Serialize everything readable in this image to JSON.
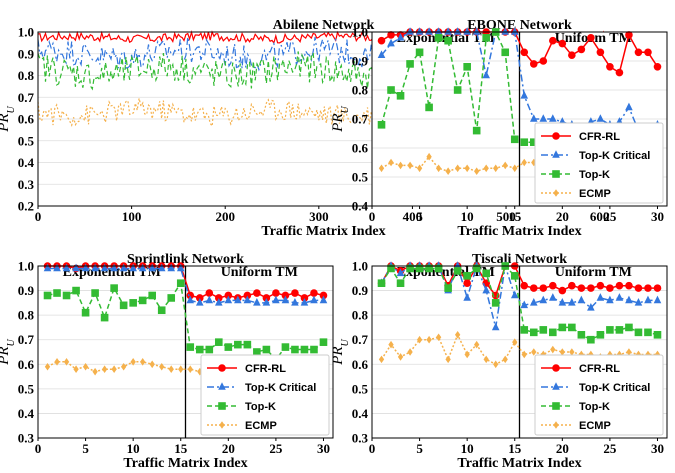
{
  "colors": {
    "cfr": "#ff0000",
    "topkc": "#3377dd",
    "topk": "#33bb33",
    "ecmp": "#f5b14c"
  },
  "chart_data": [
    {
      "type": "line",
      "title": "Abilene Network",
      "xlabel": "Traffic Matrix Index",
      "ylabel": "PR_U",
      "xlim": [
        0,
        610
      ],
      "ylim": [
        0.2,
        1.0
      ],
      "xticks": [
        "0",
        "100",
        "200",
        "300",
        "400",
        "500",
        "600"
      ],
      "yticks": [
        "0.2",
        "0.3",
        "0.4",
        "0.5",
        "0.6",
        "0.7",
        "0.8",
        "0.9",
        "1.0"
      ],
      "legend_position": "bottom-right",
      "series": [
        {
          "name": "CFR-RL",
          "mean": 0.975,
          "amp": 0.02
        },
        {
          "name": "Top-K Critical",
          "mean": 0.9,
          "amp": 0.06
        },
        {
          "name": "Top-K",
          "mean": 0.82,
          "amp": 0.07
        },
        {
          "name": "ECMP",
          "mean": 0.63,
          "amp": 0.05
        }
      ],
      "x_count": 610
    },
    {
      "type": "line",
      "title": "EBONE Network",
      "region_labels": [
        "Exponential TM",
        "Uniform TM"
      ],
      "split_x": 15.5,
      "xlabel": "Traffic Matrix Index",
      "ylabel": "PR_U",
      "xlim": [
        0,
        31
      ],
      "ylim": [
        0.4,
        1.0
      ],
      "xticks": [
        "0",
        "5",
        "10",
        "15",
        "20",
        "25",
        "30"
      ],
      "yticks": [
        "0.4",
        "0.5",
        "0.6",
        "0.7",
        "0.8",
        "0.9",
        "1.0"
      ],
      "legend_position": "bottom-right",
      "x": [
        1,
        2,
        3,
        4,
        5,
        6,
        7,
        8,
        9,
        10,
        11,
        12,
        13,
        14,
        15,
        16,
        17,
        18,
        19,
        20,
        21,
        22,
        23,
        24,
        25,
        26,
        27,
        28,
        29,
        30
      ],
      "series": [
        {
          "name": "CFR-RL",
          "values": [
            0.97,
            0.99,
            0.99,
            1.0,
            1.0,
            1.0,
            1.0,
            1.0,
            1.0,
            1.0,
            1.0,
            1.0,
            1.0,
            1.0,
            1.0,
            0.93,
            0.89,
            0.9,
            0.97,
            0.96,
            0.92,
            0.94,
            0.98,
            0.93,
            0.88,
            0.86,
            0.99,
            0.93,
            0.93,
            0.88
          ]
        },
        {
          "name": "Top-K Critical",
          "values": [
            0.92,
            0.96,
            0.98,
            1.0,
            1.0,
            1.0,
            1.0,
            1.0,
            1.0,
            1.0,
            1.0,
            0.85,
            1.0,
            1.0,
            1.0,
            0.78,
            0.7,
            0.7,
            0.7,
            0.69,
            0.68,
            0.67,
            0.69,
            0.7,
            0.68,
            0.69,
            0.74,
            0.66,
            0.67,
            0.68
          ]
        },
        {
          "name": "Top-K",
          "values": [
            0.68,
            0.8,
            0.78,
            0.89,
            0.93,
            0.74,
            0.98,
            0.97,
            0.8,
            0.88,
            0.66,
            0.98,
            1.0,
            0.93,
            0.63,
            0.62,
            0.62,
            0.63,
            0.61,
            0.62,
            0.6,
            0.6,
            0.6,
            0.61,
            0.59,
            0.63,
            0.6,
            0.61,
            0.62,
            0.6
          ]
        },
        {
          "name": "ECMP",
          "values": [
            0.53,
            0.55,
            0.54,
            0.54,
            0.53,
            0.57,
            0.53,
            0.52,
            0.53,
            0.53,
            0.52,
            0.53,
            0.53,
            0.54,
            0.53,
            0.55,
            0.55,
            0.54,
            0.55,
            0.54,
            0.55,
            0.55,
            0.54,
            0.54,
            0.55,
            0.55,
            0.55,
            0.54,
            0.55,
            0.54
          ]
        }
      ]
    },
    {
      "type": "line",
      "title": "Sprintlink Network",
      "region_labels": [
        "Exponential TM",
        "Uniform TM"
      ],
      "split_x": 15.5,
      "xlabel": "Traffic Matrix Index",
      "ylabel": "PR_U",
      "xlim": [
        0,
        31
      ],
      "ylim": [
        0.3,
        1.0
      ],
      "xticks": [
        "0",
        "5",
        "10",
        "15",
        "20",
        "25",
        "30"
      ],
      "yticks": [
        "0.3",
        "0.4",
        "0.5",
        "0.6",
        "0.7",
        "0.8",
        "0.9",
        "1.0"
      ],
      "legend_position": "bottom-right",
      "x": [
        1,
        2,
        3,
        4,
        5,
        6,
        7,
        8,
        9,
        10,
        11,
        12,
        13,
        14,
        15,
        16,
        17,
        18,
        19,
        20,
        21,
        22,
        23,
        24,
        25,
        26,
        27,
        28,
        29,
        30
      ],
      "series": [
        {
          "name": "CFR-RL",
          "values": [
            1.0,
            1.0,
            1.0,
            0.99,
            1.0,
            1.0,
            1.0,
            1.0,
            1.0,
            1.0,
            1.0,
            1.0,
            1.0,
            1.0,
            1.0,
            0.88,
            0.87,
            0.89,
            0.87,
            0.88,
            0.87,
            0.88,
            0.89,
            0.87,
            0.89,
            0.88,
            0.89,
            0.87,
            0.89,
            0.88
          ]
        },
        {
          "name": "Top-K Critical",
          "values": [
            0.99,
            0.99,
            0.99,
            0.99,
            0.99,
            0.99,
            0.99,
            0.99,
            0.99,
            0.99,
            0.99,
            0.99,
            0.99,
            0.99,
            0.99,
            0.86,
            0.85,
            0.86,
            0.85,
            0.86,
            0.86,
            0.86,
            0.85,
            0.85,
            0.86,
            0.86,
            0.85,
            0.85,
            0.86,
            0.86
          ]
        },
        {
          "name": "Top-K",
          "values": [
            0.88,
            0.89,
            0.88,
            0.9,
            0.81,
            0.89,
            0.79,
            0.91,
            0.84,
            0.85,
            0.86,
            0.88,
            0.82,
            0.87,
            0.93,
            0.67,
            0.66,
            0.66,
            0.69,
            0.67,
            0.68,
            0.68,
            0.65,
            0.66,
            0.62,
            0.67,
            0.66,
            0.66,
            0.66,
            0.69
          ]
        },
        {
          "name": "ECMP",
          "values": [
            0.59,
            0.61,
            0.61,
            0.58,
            0.59,
            0.57,
            0.58,
            0.58,
            0.59,
            0.61,
            0.61,
            0.6,
            0.59,
            0.58,
            0.58,
            0.58,
            0.57,
            0.57,
            0.57,
            0.57,
            0.57,
            0.58,
            0.58,
            0.58,
            0.58,
            0.57,
            0.58,
            0.58,
            0.57,
            0.57
          ]
        }
      ]
    },
    {
      "type": "line",
      "title": "Tiscali Network",
      "region_labels": [
        "Exponential TM",
        "Uniform TM"
      ],
      "split_x": 15.5,
      "xlabel": "Traffic Matrix Index",
      "ylabel": "PR_U",
      "xlim": [
        0,
        31
      ],
      "ylim": [
        0.3,
        1.0
      ],
      "xticks": [
        "0",
        "5",
        "10",
        "15",
        "20",
        "25",
        "30"
      ],
      "yticks": [
        "0.3",
        "0.4",
        "0.5",
        "0.6",
        "0.7",
        "0.8",
        "0.9",
        "1.0"
      ],
      "legend_position": "bottom-right",
      "x": [
        1,
        2,
        3,
        4,
        5,
        6,
        7,
        8,
        9,
        10,
        11,
        12,
        13,
        14,
        15,
        16,
        17,
        18,
        19,
        20,
        21,
        22,
        23,
        24,
        25,
        26,
        27,
        28,
        29,
        30
      ],
      "series": [
        {
          "name": "CFR-RL",
          "values": [
            0.93,
            1.0,
            0.98,
            1.0,
            1.0,
            1.0,
            1.0,
            0.92,
            1.0,
            0.93,
            1.0,
            0.93,
            0.88,
            1.0,
            1.0,
            0.92,
            0.91,
            0.91,
            0.92,
            0.9,
            0.92,
            0.91,
            0.91,
            0.92,
            0.91,
            0.92,
            0.92,
            0.91,
            0.91,
            0.91
          ]
        },
        {
          "name": "Top-K Critical",
          "values": [
            0.93,
            1.0,
            0.97,
            1.0,
            1.0,
            1.0,
            1.0,
            0.9,
            1.0,
            0.87,
            1.0,
            0.9,
            0.75,
            1.0,
            0.88,
            0.84,
            0.85,
            0.86,
            0.87,
            0.85,
            0.85,
            0.86,
            0.83,
            0.87,
            0.86,
            0.87,
            0.86,
            0.85,
            0.86,
            0.86
          ]
        },
        {
          "name": "Top-K",
          "values": [
            0.93,
            0.99,
            0.93,
            0.99,
            0.99,
            0.99,
            0.99,
            0.91,
            0.98,
            0.96,
            0.99,
            0.97,
            0.85,
            1.0,
            0.96,
            0.74,
            0.73,
            0.74,
            0.73,
            0.75,
            0.75,
            0.72,
            0.7,
            0.72,
            0.74,
            0.74,
            0.75,
            0.73,
            0.73,
            0.72
          ]
        },
        {
          "name": "ECMP",
          "values": [
            0.62,
            0.68,
            0.63,
            0.65,
            0.7,
            0.7,
            0.71,
            0.62,
            0.72,
            0.64,
            0.68,
            0.62,
            0.6,
            0.62,
            0.69,
            0.64,
            0.65,
            0.64,
            0.66,
            0.65,
            0.65,
            0.64,
            0.64,
            0.63,
            0.64,
            0.64,
            0.65,
            0.64,
            0.64,
            0.64
          ]
        }
      ]
    }
  ]
}
